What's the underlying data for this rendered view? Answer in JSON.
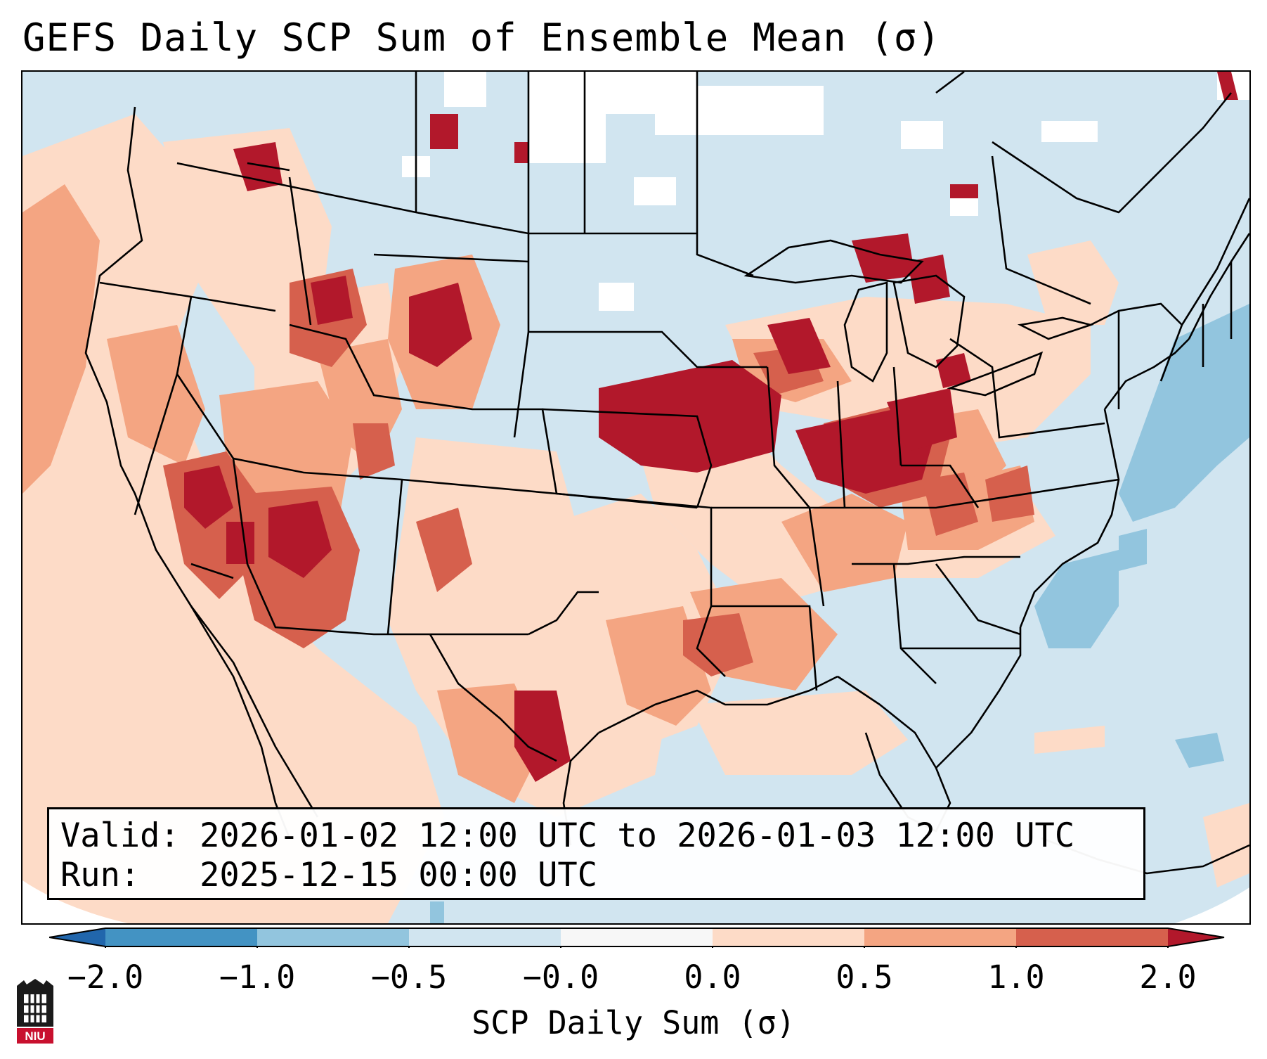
{
  "title": "GEFS Daily SCP Sum of Ensemble Mean (σ)",
  "info": {
    "valid_line": "Valid: 2026-01-02 12:00 UTC to 2026-01-03 12:00 UTC",
    "run_line": "Run:   2025-12-15 00:00 UTC"
  },
  "colorbar": {
    "title": "SCP Daily Sum (σ)",
    "tick_labels": [
      "−2.0",
      "−1.0",
      "−0.5",
      "−0.0",
      "0.0",
      "0.5",
      "1.0",
      "2.0"
    ],
    "bin_colors": [
      "#4393c3",
      "#92c5de",
      "#d1e5f0",
      "#f7f7f7",
      "#fddbc7",
      "#f4a582",
      "#d6604d"
    ],
    "under_color": "#2166ac",
    "over_color": "#b2182b"
  },
  "colors": {
    "ocean_background": "#d1e5f0",
    "weak_positive": "#fddbc7",
    "moderate_positive": "#f4a582",
    "strong_positive": "#d6604d",
    "extreme_positive": "#b2182b",
    "negative": "#92c5de",
    "near_zero": "#ffffff"
  },
  "logo": {
    "text": "NIU"
  }
}
